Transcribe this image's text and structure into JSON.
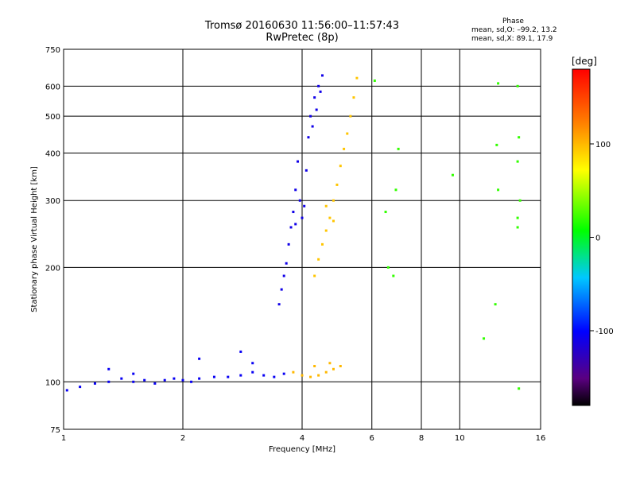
{
  "chart_data": {
    "type": "scatter",
    "title_line1": "Tromsø 20160630 11:56:00–11:57:43",
    "title_line2": "RwPretec (8p)",
    "xlabel": "Frequency [MHz]",
    "ylabel": "Stationary phase Virtual Height [km]",
    "xscale": "log",
    "yscale": "log",
    "xlim": [
      1,
      16
    ],
    "ylim": [
      75,
      750
    ],
    "xticks": [
      1,
      2,
      4,
      6,
      8,
      10,
      16
    ],
    "yticks": [
      75,
      100,
      200,
      300,
      400,
      500,
      600,
      750
    ],
    "grid_x": [
      2,
      4,
      6,
      8,
      10
    ],
    "grid_y": [
      100,
      200,
      300,
      400,
      500,
      600
    ],
    "phase_legend": {
      "title": "Phase",
      "o_mode": "mean, sd,O: –99.2, 13.2",
      "x_mode": "mean, sd,X:  89.1, 17.9"
    },
    "colorbar": {
      "label": "[deg]",
      "min": -180,
      "max": 180,
      "ticks": [
        100,
        0,
        -100
      ]
    },
    "series": [
      {
        "name": "low-band trace (blue)",
        "phase": -105,
        "points": [
          [
            1.02,
            95
          ],
          [
            1.1,
            97
          ],
          [
            1.2,
            99
          ],
          [
            1.3,
            100
          ],
          [
            1.4,
            102
          ],
          [
            1.5,
            100
          ],
          [
            1.6,
            101
          ],
          [
            1.7,
            99
          ],
          [
            1.8,
            101
          ],
          [
            1.9,
            102
          ],
          [
            2.0,
            101
          ],
          [
            2.1,
            100
          ],
          [
            2.2,
            102
          ],
          [
            2.4,
            103
          ],
          [
            2.6,
            103
          ],
          [
            2.8,
            104
          ],
          [
            3.0,
            106
          ],
          [
            3.2,
            104
          ],
          [
            3.4,
            103
          ],
          [
            3.6,
            105
          ],
          [
            3.0,
            112
          ],
          [
            2.8,
            120
          ],
          [
            2.2,
            115
          ],
          [
            1.5,
            105
          ],
          [
            1.3,
            108
          ]
        ]
      },
      {
        "name": "O-mode F trace (blue)",
        "phase": -110,
        "points": [
          [
            3.5,
            160
          ],
          [
            3.55,
            175
          ],
          [
            3.6,
            190
          ],
          [
            3.65,
            205
          ],
          [
            3.7,
            230
          ],
          [
            3.75,
            255
          ],
          [
            3.8,
            280
          ],
          [
            3.85,
            320
          ],
          [
            3.9,
            380
          ],
          [
            3.85,
            260
          ],
          [
            3.95,
            300
          ],
          [
            4.0,
            270
          ],
          [
            4.05,
            290
          ],
          [
            4.1,
            360
          ],
          [
            4.15,
            440
          ],
          [
            4.2,
            500
          ],
          [
            4.3,
            560
          ],
          [
            4.4,
            600
          ],
          [
            4.5,
            640
          ],
          [
            4.35,
            520
          ],
          [
            4.25,
            470
          ],
          [
            4.45,
            580
          ]
        ]
      },
      {
        "name": "X-mode F trace (yellow)",
        "phase": 95,
        "points": [
          [
            4.3,
            190
          ],
          [
            4.4,
            210
          ],
          [
            4.5,
            230
          ],
          [
            4.6,
            250
          ],
          [
            4.7,
            270
          ],
          [
            4.8,
            300
          ],
          [
            4.9,
            330
          ],
          [
            5.0,
            370
          ],
          [
            5.1,
            410
          ],
          [
            5.2,
            450
          ],
          [
            5.3,
            500
          ],
          [
            5.4,
            560
          ],
          [
            5.5,
            630
          ],
          [
            4.6,
            290
          ],
          [
            4.8,
            265
          ]
        ]
      },
      {
        "name": "X-mode low trace (yellow)",
        "phase": 100,
        "points": [
          [
            3.8,
            106
          ],
          [
            4.0,
            104
          ],
          [
            4.2,
            103
          ],
          [
            4.4,
            104
          ],
          [
            4.6,
            106
          ],
          [
            4.8,
            108
          ],
          [
            5.0,
            110
          ],
          [
            4.3,
            110
          ],
          [
            4.7,
            112
          ]
        ]
      },
      {
        "name": "scattered echoes",
        "phase": 20,
        "points": [
          [
            6.1,
            620
          ],
          [
            6.5,
            280
          ],
          [
            6.6,
            200
          ],
          [
            6.8,
            190
          ],
          [
            6.9,
            320
          ],
          [
            7.0,
            410
          ],
          [
            9.6,
            350
          ],
          [
            12.5,
            610
          ],
          [
            12.4,
            420
          ],
          [
            12.5,
            320
          ],
          [
            14.0,
            600
          ],
          [
            14.1,
            440
          ],
          [
            14.0,
            380
          ],
          [
            14.2,
            300
          ],
          [
            14.0,
            270
          ],
          [
            14.0,
            255
          ],
          [
            14.1,
            96
          ],
          [
            11.5,
            130
          ],
          [
            12.3,
            160
          ]
        ]
      }
    ]
  }
}
